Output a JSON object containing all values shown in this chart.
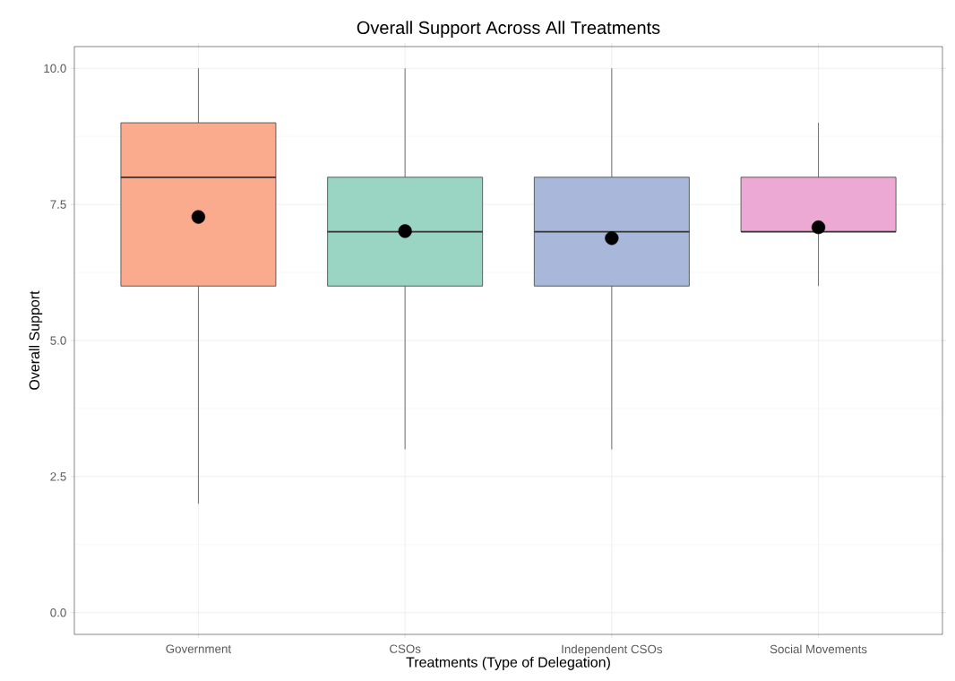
{
  "chart_data": {
    "type": "box",
    "title": "Overall Support Across All Treatments",
    "xlabel": "Treatments (Type of Delegation)",
    "ylabel": "Overall Support",
    "categories": [
      "Government",
      "CSOs",
      "Independent CSOs",
      "Social Movements"
    ],
    "boxes": [
      {
        "low": 2,
        "q1": 6,
        "median": 8,
        "q3": 9,
        "high": 10,
        "mean": 7.27
      },
      {
        "low": 3,
        "q1": 6,
        "median": 7,
        "q3": 8,
        "high": 10,
        "mean": 7.01
      },
      {
        "low": 3,
        "q1": 6,
        "median": 7,
        "q3": 8,
        "high": 10,
        "mean": 6.88
      },
      {
        "low": 6,
        "q1": 7,
        "median": 7,
        "q3": 8,
        "high": 9,
        "mean": 7.08
      }
    ],
    "colors": [
      "#faaa8d",
      "#9ad4c2",
      "#a9b8da",
      "#eba9d3"
    ],
    "ylim": [
      -0.4,
      10.4
    ],
    "yticks": [
      {
        "value": 0,
        "label": "0.0"
      },
      {
        "value": 2.5,
        "label": "2.5"
      },
      {
        "value": 5,
        "label": "5.0"
      },
      {
        "value": 7.5,
        "label": "7.5"
      },
      {
        "value": 10,
        "label": "10.0"
      }
    ],
    "grid": true
  }
}
